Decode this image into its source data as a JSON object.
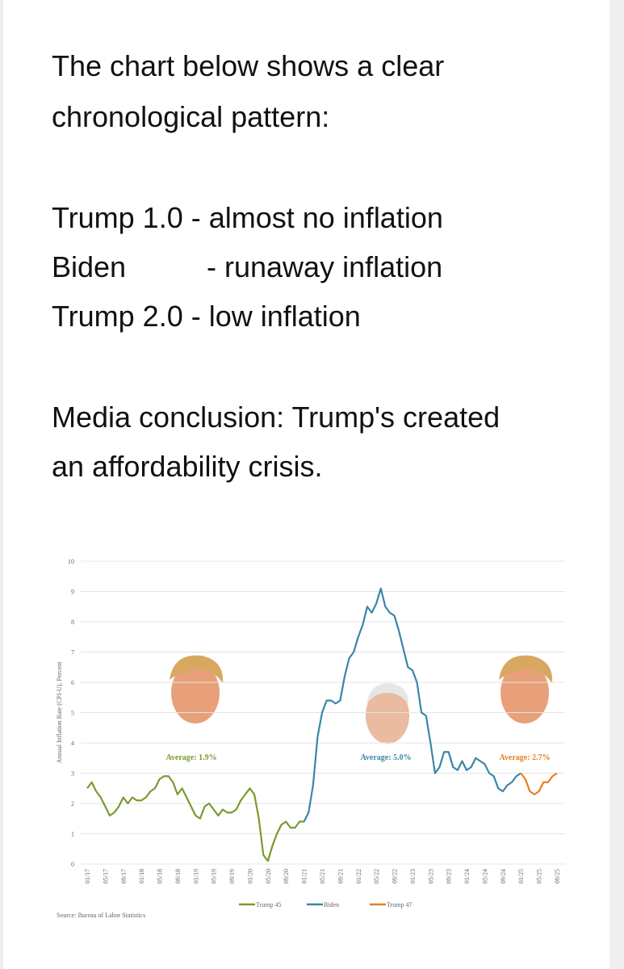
{
  "text": {
    "lines": [
      "The chart below shows a clear",
      "chronological pattern:",
      "Trump 1.0 - almost no inflation",
      "Biden",
      "- runaway inflation",
      "Trump 2.0 - low inflation",
      "Media conclusion: Trump's created",
      "an affordability crisis."
    ]
  },
  "chart_data": {
    "type": "line",
    "y_label": "Annual Inflation Rate (CPI-U), Percent",
    "source": "Source: Bureau of Labor Statistics",
    "annotations": [
      "Average: 1.9%",
      "Average: 5.0%",
      "Average: 2.7%"
    ],
    "categories": [
      "01/17",
      null,
      null,
      null,
      "05/17",
      null,
      null,
      null,
      "09/17",
      null,
      null,
      null,
      "01/18",
      null,
      null,
      null,
      "05/18",
      null,
      null,
      null,
      "09/18",
      null,
      null,
      null,
      "01/19",
      null,
      null,
      null,
      "05/19",
      null,
      null,
      null,
      "09/19",
      null,
      null,
      null,
      "01/20",
      null,
      null,
      null,
      "05/20",
      null,
      null,
      null,
      "09/20",
      null,
      null,
      null,
      "01/21",
      null,
      null,
      null,
      "05/21",
      null,
      null,
      null,
      "09/21",
      null,
      null,
      null,
      "01/22",
      null,
      null,
      null,
      "05/22",
      null,
      null,
      null,
      "09/22",
      null,
      null,
      null,
      "01/23",
      null,
      null,
      null,
      "05/23",
      null,
      null,
      null,
      "09/23",
      null,
      null,
      null,
      "01/24",
      null,
      null,
      null,
      "05/24",
      null,
      null,
      null,
      "09/24",
      null,
      null,
      null,
      "01/25",
      null,
      null,
      null,
      "05/25",
      null,
      null,
      null,
      "09/25"
    ],
    "series": [
      {
        "name": "Trump 45",
        "color": "#7a9a2e",
        "values": [
          2.5,
          2.7,
          2.4,
          2.2,
          1.9,
          1.6,
          1.7,
          1.9,
          2.2,
          2.0,
          2.2,
          2.1,
          2.1,
          2.2,
          2.4,
          2.5,
          2.8,
          2.9,
          2.9,
          2.7,
          2.3,
          2.5,
          2.2,
          1.9,
          1.6,
          1.5,
          1.9,
          2.0,
          1.8,
          1.6,
          1.8,
          1.7,
          1.7,
          1.8,
          2.1,
          2.3,
          2.5,
          2.3,
          1.5,
          0.3,
          0.1,
          0.6,
          1.0,
          1.3,
          1.4,
          1.2,
          1.2,
          1.4,
          1.4,
          null,
          null,
          null,
          null,
          null,
          null,
          null,
          null,
          null,
          null,
          null,
          null,
          null,
          null,
          null,
          null,
          null,
          null,
          null,
          null,
          null,
          null,
          null,
          null,
          null,
          null,
          null,
          null,
          null,
          null,
          null,
          null,
          null,
          null,
          null,
          null,
          null,
          null,
          null,
          null,
          null,
          null,
          null,
          null,
          null,
          null,
          null,
          null,
          null,
          null,
          null,
          null,
          null,
          null,
          null,
          null
        ]
      },
      {
        "name": "Biden",
        "color": "#3a86a8",
        "values": [
          null,
          null,
          null,
          null,
          null,
          null,
          null,
          null,
          null,
          null,
          null,
          null,
          null,
          null,
          null,
          null,
          null,
          null,
          null,
          null,
          null,
          null,
          null,
          null,
          null,
          null,
          null,
          null,
          null,
          null,
          null,
          null,
          null,
          null,
          null,
          null,
          null,
          null,
          null,
          null,
          null,
          null,
          null,
          null,
          null,
          null,
          null,
          null,
          1.4,
          1.7,
          2.6,
          4.2,
          5.0,
          5.4,
          5.4,
          5.3,
          5.4,
          6.2,
          6.8,
          7.0,
          7.5,
          7.9,
          8.5,
          8.3,
          8.6,
          9.1,
          8.5,
          8.3,
          8.2,
          7.7,
          7.1,
          6.5,
          6.4,
          6.0,
          5.0,
          4.9,
          4.0,
          3.0,
          3.2,
          3.7,
          3.7,
          3.2,
          3.1,
          3.4,
          3.1,
          3.2,
          3.5,
          3.4,
          3.3,
          3.0,
          2.9,
          2.5,
          2.4,
          2.6,
          2.7,
          2.9,
          3.0,
          null,
          null,
          null,
          null,
          null,
          null,
          null,
          null
        ]
      },
      {
        "name": "Trump 47",
        "color": "#e67e22",
        "values": [
          null,
          null,
          null,
          null,
          null,
          null,
          null,
          null,
          null,
          null,
          null,
          null,
          null,
          null,
          null,
          null,
          null,
          null,
          null,
          null,
          null,
          null,
          null,
          null,
          null,
          null,
          null,
          null,
          null,
          null,
          null,
          null,
          null,
          null,
          null,
          null,
          null,
          null,
          null,
          null,
          null,
          null,
          null,
          null,
          null,
          null,
          null,
          null,
          null,
          null,
          null,
          null,
          null,
          null,
          null,
          null,
          null,
          null,
          null,
          null,
          null,
          null,
          null,
          null,
          null,
          null,
          null,
          null,
          null,
          null,
          null,
          null,
          null,
          null,
          null,
          null,
          null,
          null,
          null,
          null,
          null,
          null,
          null,
          null,
          null,
          null,
          null,
          null,
          null,
          null,
          null,
          null,
          null,
          null,
          null,
          null,
          3.0,
          2.8,
          2.4,
          2.3,
          2.4,
          2.7,
          2.7,
          2.9,
          3.0
        ]
      }
    ],
    "ylim": [
      0,
      10
    ],
    "yticks": [
      0,
      1,
      2,
      3,
      4,
      5,
      6,
      7,
      8,
      9,
      10
    ],
    "grid": true
  }
}
